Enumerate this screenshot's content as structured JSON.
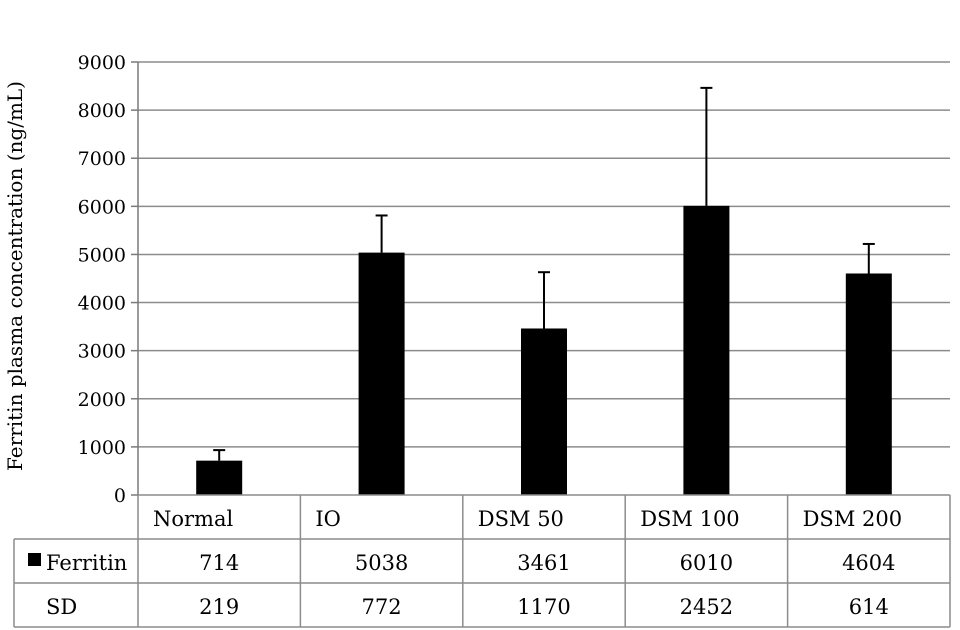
{
  "chart_data": {
    "type": "bar",
    "ylabel": "Ferritin plasma concentration (ng/mL)",
    "ylim": [
      0,
      9000
    ],
    "yticks": [
      0,
      1000,
      2000,
      3000,
      4000,
      5000,
      6000,
      7000,
      8000,
      9000
    ],
    "grid": true,
    "categories": [
      "Normal",
      "IO",
      "DSM 50",
      "DSM 100",
      "DSM 200"
    ],
    "series": [
      {
        "name": "Ferritin",
        "color": "#000000",
        "values": [
          714,
          5038,
          3461,
          6010,
          4604
        ],
        "error": [
          219,
          772,
          1170,
          2452,
          614
        ]
      }
    ],
    "data_table": {
      "rows": [
        {
          "label": "Ferritin",
          "values": [
            "714",
            "5038",
            "3461",
            "6010",
            "4604"
          ],
          "swatch": true
        },
        {
          "label": "SD",
          "values": [
            "219",
            "772",
            "1170",
            "2452",
            "614"
          ],
          "swatch": false
        }
      ]
    }
  }
}
